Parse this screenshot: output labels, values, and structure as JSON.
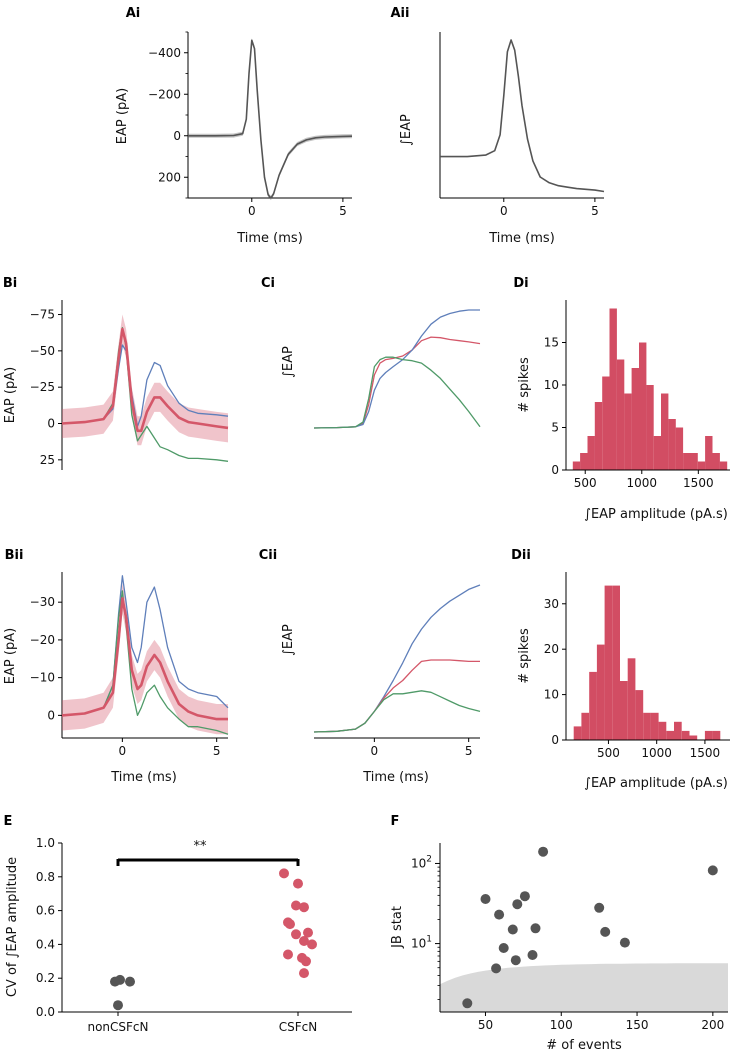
{
  "colors": {
    "grey": "#555555",
    "red": "#d45769",
    "blue": "#5f7fba",
    "green": "#4f9a68",
    "bar": "#d24d63",
    "shade": "#d9d9d9"
  },
  "labels": {
    "Ai": "Ai",
    "Aii": "Aii",
    "Bi": "Bi",
    "Bii": "Bii",
    "Ci": "Ci",
    "Cii": "Cii",
    "Di": "Di",
    "Dii": "Dii",
    "E": "E",
    "F": "F",
    "time": "Time (ms)",
    "eap_pa": "EAP (pA)",
    "int_eap": "EAP",
    "spikes": "# spikes",
    "int_amp": "EAP amplitude (pA.s)",
    "cv": "CV of ",
    "cv_tail": "EAP amplitude",
    "jb": "JB stat",
    "events": "# of events",
    "sig": "**"
  },
  "chart_data": [
    {
      "panel": "Ai",
      "type": "line",
      "xlabel": "Time (ms)",
      "ylabel": "EAP (pA)",
      "xlim": [
        -3.5,
        5.5
      ],
      "ylim": [
        300,
        -500
      ],
      "yticks": [
        -400,
        -200,
        0,
        200
      ],
      "xticks": [
        0,
        5
      ],
      "series": [
        {
          "name": "mean EAP",
          "x": [
            -3.5,
            -2,
            -1,
            -0.5,
            -0.3,
            -0.15,
            0,
            0.15,
            0.3,
            0.5,
            0.7,
            0.9,
            1.05,
            1.2,
            1.5,
            2,
            2.5,
            3,
            3.5,
            4,
            5,
            5.5
          ],
          "y": [
            0,
            0,
            -1,
            -10,
            -80,
            -300,
            -460,
            -420,
            -220,
            20,
            200,
            285,
            300,
            280,
            190,
            90,
            40,
            20,
            10,
            6,
            3,
            2
          ]
        }
      ]
    },
    {
      "panel": "Aii",
      "type": "line",
      "xlabel": "Time (ms)",
      "ylabel": "EAP",
      "xlim": [
        -3.5,
        5.5
      ],
      "yticks": [],
      "xticks": [
        0,
        5
      ],
      "series": [
        {
          "name": "integrated EAP",
          "x": [
            -3.5,
            -2,
            -1,
            -0.5,
            -0.2,
            0,
            0.2,
            0.4,
            0.6,
            0.8,
            1.0,
            1.3,
            1.6,
            2,
            2.5,
            3,
            3.5,
            4,
            5,
            5.5
          ],
          "y": [
            0.2,
            0.2,
            0.21,
            0.24,
            0.35,
            0.62,
            0.92,
            1.0,
            0.93,
            0.75,
            0.55,
            0.32,
            0.17,
            0.06,
            0.02,
            0.0,
            -0.01,
            -0.02,
            -0.03,
            -0.04
          ]
        }
      ]
    },
    {
      "panel": "Bi",
      "type": "line",
      "xlabel": "",
      "ylabel": "EAP (pA)",
      "xlim": [
        -3.2,
        5.6
      ],
      "ylim": [
        32,
        -85
      ],
      "yticks": [
        -75,
        -50,
        -25,
        0,
        25
      ],
      "series": [
        {
          "name": "mean",
          "x": [
            -3.2,
            -2,
            -1,
            -0.5,
            -0.2,
            0,
            0.2,
            0.5,
            0.8,
            1.0,
            1.3,
            1.7,
            2.0,
            2.4,
            3,
            3.5,
            4,
            5,
            5.6
          ],
          "y": [
            0,
            -1,
            -3,
            -12,
            -45,
            -65,
            -55,
            -15,
            5,
            5,
            -8,
            -18,
            -18,
            -12,
            -4,
            -1,
            0,
            2,
            3
          ],
          "band": 10
        },
        {
          "name": "blue",
          "x": [
            -3.2,
            -2,
            -1,
            -0.5,
            -0.2,
            0,
            0.2,
            0.5,
            0.8,
            1.0,
            1.3,
            1.7,
            2.0,
            2.4,
            3,
            3.5,
            4,
            5,
            5.6
          ],
          "y": [
            0,
            -1,
            -3,
            -10,
            -38,
            -54,
            -50,
            -20,
            2,
            -5,
            -30,
            -42,
            -40,
            -26,
            -14,
            -9,
            -7,
            -6,
            -5
          ]
        },
        {
          "name": "green",
          "x": [
            -3.2,
            -2,
            -1,
            -0.5,
            -0.2,
            0,
            0.2,
            0.5,
            0.8,
            1.0,
            1.3,
            1.7,
            2.0,
            2.4,
            3,
            3.5,
            4,
            5,
            5.6
          ],
          "y": [
            0,
            -1,
            -3,
            -14,
            -50,
            -66,
            -52,
            -6,
            12,
            8,
            2,
            10,
            16,
            18,
            22,
            24,
            24,
            25,
            26
          ]
        }
      ]
    },
    {
      "panel": "Bii",
      "type": "line",
      "xlabel": "Time (ms)",
      "ylabel": "EAP (pA)",
      "xlim": [
        -3.2,
        5.6
      ],
      "ylim": [
        6,
        -38
      ],
      "yticks": [
        -30,
        -20,
        -10,
        0
      ],
      "xticks": [
        0,
        5
      ],
      "series": [
        {
          "name": "mean",
          "x": [
            -3.2,
            -2,
            -1,
            -0.5,
            -0.2,
            0,
            0.2,
            0.5,
            0.8,
            1.0,
            1.3,
            1.7,
            2.0,
            2.4,
            3,
            3.5,
            4,
            5,
            5.6
          ],
          "y": [
            0,
            -0.5,
            -2,
            -6,
            -20,
            -31,
            -26,
            -12,
            -7,
            -8,
            -13,
            -16,
            -14,
            -9,
            -3,
            -1,
            0,
            1,
            1
          ],
          "band": 4
        },
        {
          "name": "blue",
          "x": [
            -3.2,
            -2,
            -1,
            -0.5,
            -0.2,
            0,
            0.2,
            0.5,
            0.8,
            1.0,
            1.3,
            1.7,
            2.0,
            2.4,
            3,
            3.5,
            4,
            5,
            5.6
          ],
          "y": [
            0,
            -0.5,
            -2,
            -8,
            -27,
            -37,
            -30,
            -18,
            -14,
            -18,
            -30,
            -34,
            -28,
            -18,
            -9,
            -7,
            -6,
            -5,
            -2
          ]
        },
        {
          "name": "green",
          "x": [
            -3.2,
            -2,
            -1,
            -0.5,
            -0.2,
            0,
            0.2,
            0.5,
            0.8,
            1.0,
            1.3,
            1.7,
            2.0,
            2.4,
            3,
            3.5,
            4,
            5,
            5.6
          ],
          "y": [
            0,
            -0.5,
            -2,
            -8,
            -26,
            -33,
            -24,
            -7,
            0,
            -2,
            -6,
            -8,
            -5,
            -2,
            1,
            3,
            3,
            4,
            5
          ]
        }
      ]
    },
    {
      "panel": "Ci",
      "type": "line",
      "xlabel": "",
      "ylabel": "EAP",
      "xlim": [
        -3.2,
        5.6
      ],
      "yticks": [],
      "series": [
        {
          "name": "red",
          "x": [
            -3.2,
            -2,
            -1,
            -0.6,
            -0.3,
            0,
            0.3,
            0.6,
            1.0,
            1.5,
            2.0,
            2.5,
            3,
            3.5,
            4,
            4.5,
            5,
            5.6
          ],
          "y": [
            0,
            0.003,
            0.01,
            0.04,
            0.2,
            0.45,
            0.55,
            0.58,
            0.59,
            0.61,
            0.66,
            0.74,
            0.77,
            0.765,
            0.75,
            0.74,
            0.73,
            0.715
          ]
        },
        {
          "name": "blue",
          "x": [
            -3.2,
            -2,
            -1,
            -0.6,
            -0.3,
            0,
            0.3,
            0.6,
            1.0,
            1.5,
            2.0,
            2.5,
            3,
            3.5,
            4,
            4.5,
            5,
            5.6
          ],
          "y": [
            0,
            0.003,
            0.01,
            0.03,
            0.14,
            0.32,
            0.42,
            0.47,
            0.52,
            0.58,
            0.66,
            0.78,
            0.88,
            0.94,
            0.97,
            0.99,
            1.0,
            1.0
          ]
        },
        {
          "name": "green",
          "x": [
            -3.2,
            -2,
            -1,
            -0.6,
            -0.3,
            0,
            0.3,
            0.6,
            1.0,
            1.5,
            2.0,
            2.5,
            3,
            3.5,
            4,
            4.5,
            5,
            5.6
          ],
          "y": [
            0,
            0.003,
            0.01,
            0.05,
            0.25,
            0.52,
            0.58,
            0.6,
            0.6,
            0.58,
            0.57,
            0.55,
            0.49,
            0.42,
            0.33,
            0.24,
            0.14,
            0.01
          ]
        }
      ]
    },
    {
      "panel": "Cii",
      "type": "line",
      "xlabel": "Time (ms)",
      "ylabel": "EAP",
      "xlim": [
        -3.2,
        5.6
      ],
      "yticks": [],
      "xticks": [
        0,
        5
      ],
      "series": [
        {
          "name": "blue",
          "x": [
            -3.2,
            -2,
            -1,
            -0.5,
            0,
            0.5,
            1.0,
            1.5,
            2.0,
            2.5,
            3,
            3.5,
            4,
            4.5,
            5,
            5.6
          ],
          "y": [
            0,
            0.005,
            0.02,
            0.06,
            0.14,
            0.24,
            0.35,
            0.47,
            0.6,
            0.7,
            0.78,
            0.84,
            0.89,
            0.93,
            0.97,
            1.0
          ]
        },
        {
          "name": "red",
          "x": [
            -3.2,
            -2,
            -1,
            -0.5,
            0,
            0.5,
            1.0,
            1.5,
            2.0,
            2.5,
            3,
            3.5,
            4,
            4.5,
            5,
            5.6
          ],
          "y": [
            0,
            0.005,
            0.02,
            0.06,
            0.14,
            0.23,
            0.3,
            0.35,
            0.42,
            0.48,
            0.49,
            0.49,
            0.49,
            0.485,
            0.48,
            0.48
          ]
        },
        {
          "name": "green",
          "x": [
            -3.2,
            -2,
            -1,
            -0.5,
            0,
            0.5,
            1.0,
            1.5,
            2.0,
            2.5,
            3,
            3.5,
            4,
            4.5,
            5,
            5.6
          ],
          "y": [
            0,
            0.005,
            0.02,
            0.06,
            0.14,
            0.22,
            0.26,
            0.26,
            0.27,
            0.28,
            0.27,
            0.24,
            0.21,
            0.18,
            0.16,
            0.14
          ]
        }
      ]
    },
    {
      "panel": "Di",
      "type": "bar",
      "xlabel": "EAP amplitude (pA.s)",
      "ylabel": "# spikes",
      "xlim": [
        330,
        1780
      ],
      "ylim": [
        0,
        20
      ],
      "xticks": [
        500,
        1000,
        1500
      ],
      "yticks": [
        0,
        5,
        10,
        15
      ],
      "bin_edges": [
        390,
        455,
        520,
        585,
        650,
        715,
        780,
        845,
        910,
        975,
        1040,
        1105,
        1170,
        1235,
        1300,
        1365,
        1430,
        1495,
        1560,
        1625,
        1690,
        1755
      ],
      "counts": [
        1,
        2,
        4,
        8,
        11,
        19,
        13,
        9,
        12,
        15,
        10,
        4,
        9,
        6,
        5,
        2,
        2,
        1,
        4,
        2,
        1
      ]
    },
    {
      "panel": "Dii",
      "type": "bar",
      "xlabel": "EAP amplitude (pA.s)",
      "ylabel": "# spikes",
      "xlim": [
        60,
        1760
      ],
      "ylim": [
        0,
        37
      ],
      "xticks": [
        500,
        1000,
        1500
      ],
      "yticks": [
        0,
        10,
        20,
        30
      ],
      "bin_edges": [
        140,
        220,
        300,
        380,
        460,
        540,
        620,
        700,
        780,
        860,
        940,
        1020,
        1100,
        1180,
        1260,
        1340,
        1420,
        1500,
        1580,
        1660
      ],
      "counts": [
        3,
        6,
        15,
        21,
        34,
        34,
        13,
        18,
        11,
        6,
        6,
        4,
        2,
        4,
        2,
        1,
        0,
        2,
        2
      ]
    },
    {
      "panel": "E",
      "type": "scatter",
      "xlabel": "",
      "ylabel": "CV of EAP amplitude",
      "ylim": [
        0,
        1.0
      ],
      "yticks": [
        0.0,
        0.2,
        0.4,
        0.6,
        0.8,
        1.0
      ],
      "categories": [
        "nonCSFcN",
        "CSFcN"
      ],
      "groups": [
        {
          "name": "nonCSFcN",
          "values": [
            0.04,
            0.18,
            0.19,
            0.18
          ]
        },
        {
          "name": "CSFcN",
          "values": [
            0.82,
            0.76,
            0.63,
            0.62,
            0.52,
            0.53,
            0.47,
            0.46,
            0.42,
            0.4,
            0.34,
            0.32,
            0.3,
            0.23
          ]
        }
      ],
      "annotation": "**"
    },
    {
      "panel": "F",
      "type": "scatter",
      "xlabel": "# of events",
      "ylabel": "JB stat",
      "yscale": "log",
      "xlim": [
        20,
        210
      ],
      "ylim": [
        1.4,
        180
      ],
      "xticks": [
        50,
        100,
        150,
        200
      ],
      "points": [
        {
          "x": 38,
          "y": 1.8
        },
        {
          "x": 50,
          "y": 36
        },
        {
          "x": 57,
          "y": 4.9
        },
        {
          "x": 59,
          "y": 23
        },
        {
          "x": 62,
          "y": 8.8
        },
        {
          "x": 68,
          "y": 15
        },
        {
          "x": 70,
          "y": 6.2
        },
        {
          "x": 71,
          "y": 31
        },
        {
          "x": 76,
          "y": 39
        },
        {
          "x": 81,
          "y": 7.2
        },
        {
          "x": 83,
          "y": 15.5
        },
        {
          "x": 88,
          "y": 140
        },
        {
          "x": 125,
          "y": 28
        },
        {
          "x": 129,
          "y": 14
        },
        {
          "x": 142,
          "y": 10.3
        },
        {
          "x": 200,
          "y": 82
        }
      ],
      "shaded_region": "critical value region"
    }
  ]
}
